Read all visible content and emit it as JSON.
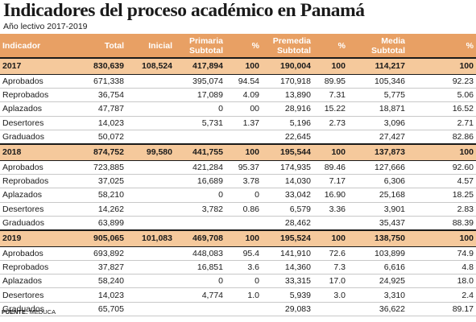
{
  "title": "Indicadores del proceso académico en Panamá",
  "subtitle": "Año lectivo 2017-2019",
  "colors": {
    "header_bg": "#e8a064",
    "year_bg": "#f5c99c"
  },
  "headers": [
    {
      "line1": "Indicador",
      "line2": ""
    },
    {
      "line1": "Total",
      "line2": ""
    },
    {
      "line1": "Inicial",
      "line2": ""
    },
    {
      "line1": "Primaria",
      "line2": "Subtotal"
    },
    {
      "line1": "%",
      "line2": ""
    },
    {
      "line1": "Premedia",
      "line2": "Subtotal"
    },
    {
      "line1": "%",
      "line2": ""
    },
    {
      "line1": "Media",
      "line2": "Subtotal"
    },
    {
      "line1": "%",
      "line2": ""
    }
  ],
  "years": [
    {
      "year": [
        "2017",
        "830,639",
        "108,524",
        "417,894",
        "100",
        "190,004",
        "100",
        "114,217",
        "100"
      ],
      "rows": [
        [
          "Aprobados",
          "671,338",
          "",
          "395,074",
          "94.54",
          "170,918",
          "89.95",
          "105,346",
          "92.23"
        ],
        [
          "Reprobados",
          "36,754",
          "",
          "17,089",
          "4.09",
          "13,890",
          "7.31",
          "5,775",
          "5.06"
        ],
        [
          "Aplazados",
          "47,787",
          "",
          "0",
          "00",
          "28,916",
          "15.22",
          "18,871",
          "16.52"
        ],
        [
          "Desertores",
          "14,023",
          "",
          "5,731",
          "1.37",
          "5,196",
          "2.73",
          "3,096",
          "2.71"
        ],
        [
          "Graduados",
          "50,072",
          "",
          "",
          "",
          "22,645",
          "",
          "27,427",
          "82.86"
        ]
      ]
    },
    {
      "year": [
        "2018",
        "874,752",
        "99,580",
        "441,755",
        "100",
        "195,544",
        "100",
        "137,873",
        "100"
      ],
      "rows": [
        [
          "Aprobados",
          "723,885",
          "",
          "421,284",
          "95.37",
          "174,935",
          "89.46",
          "127,666",
          "92.60"
        ],
        [
          "Reprobados",
          "37,025",
          "",
          "16,689",
          "3.78",
          "14,030",
          "7.17",
          "6,306",
          "4.57"
        ],
        [
          "Aplazados",
          "58,210",
          "",
          "0",
          "0",
          "33,042",
          "16.90",
          "25,168",
          "18.25"
        ],
        [
          "Desertores",
          "14,262",
          "",
          "3,782",
          "0.86",
          "6,579",
          "3.36",
          "3,901",
          "2.83"
        ],
        [
          "Graduados",
          "63,899",
          "",
          "",
          "",
          "28,462",
          "",
          "35,437",
          "88.39"
        ]
      ]
    },
    {
      "year": [
        "2019",
        "905,065",
        "101,083",
        "469,708",
        "100",
        "195,524",
        "100",
        "138,750",
        "100"
      ],
      "rows": [
        [
          "Aprobados",
          "693,892",
          "",
          "448,083",
          "95.4",
          "141,910",
          "72.6",
          "103,899",
          "74.9"
        ],
        [
          "Reprobados",
          "37,827",
          "",
          "16,851",
          "3.6",
          "14,360",
          "7.3",
          "6,616",
          "4.8"
        ],
        [
          "Aplazados",
          "58,240",
          "",
          "0",
          "0",
          "33,315",
          "17.0",
          "24,925",
          "18.0"
        ],
        [
          "Desertores",
          "14,023",
          "",
          "4,774",
          "1.0",
          "5,939",
          "3.0",
          "3,310",
          "2.4"
        ],
        [
          "Graduados",
          "65,705",
          "",
          "",
          "",
          "29,083",
          "",
          "36,622",
          "89.17"
        ]
      ]
    }
  ],
  "source": {
    "label": "FUENTE:",
    "text": "MEDUCA"
  }
}
